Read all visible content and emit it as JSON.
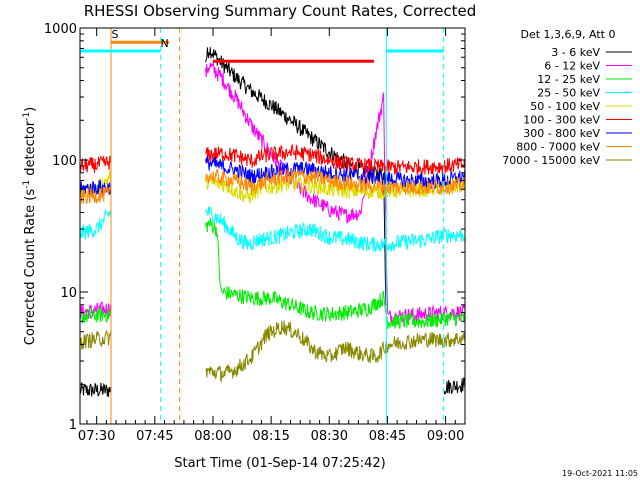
{
  "chart_data": {
    "type": "line",
    "title": "RHESSI Observing Summary Count Rates, Corrected",
    "xlabel": "Start Time (01-Sep-14 07:25:42)",
    "ylabel": "Corrected Count Rate (s",
    "ylabel_sup1": "-1",
    "ylabel_mid": " detector",
    "ylabel_sup2": "-1",
    "ylabel_end": ")",
    "yscale": "log",
    "ylim": [
      1,
      1000
    ],
    "xlim_min": [
      445.7,
      545
    ],
    "x_ticks": [
      {
        "label": "07:30",
        "min": 450
      },
      {
        "label": "07:45",
        "min": 465
      },
      {
        "label": "08:00",
        "min": 480
      },
      {
        "label": "08:15",
        "min": 495
      },
      {
        "label": "08:30",
        "min": 510
      },
      {
        "label": "08:45",
        "min": 525
      },
      {
        "label": "09:00",
        "min": 540
      }
    ],
    "y_ticks": [
      {
        "label": "1",
        "v": 1
      },
      {
        "label": "10",
        "v": 10
      },
      {
        "label": "100",
        "v": 100
      },
      {
        "label": "1000",
        "v": 1000
      }
    ],
    "legend_header": "Det 1,3,6,9, Att 0",
    "series": [
      {
        "name": "3 - 6 keV",
        "color": "#000000",
        "data_gaps": [
          [
            453.7,
            478
          ],
          [
            524.7,
            539.5
          ]
        ],
        "points": [
          [
            446,
            1.8
          ],
          [
            453.5,
            1.8
          ],
          [
            479,
            700
          ],
          [
            482,
            550
          ],
          [
            486,
            420
          ],
          [
            490,
            330
          ],
          [
            495,
            260
          ],
          [
            500,
            200
          ],
          [
            505,
            150
          ],
          [
            510,
            115
          ],
          [
            515,
            92
          ],
          [
            520,
            80
          ],
          [
            524,
            78
          ],
          [
            525,
            1.9
          ],
          [
            539.5,
            1.9
          ],
          [
            545,
            2
          ]
        ]
      },
      {
        "name": "6 - 12 keV",
        "color": "#ff00ff",
        "data_gaps": [
          [
            453.7,
            478
          ]
        ],
        "points": [
          [
            446,
            7
          ],
          [
            453.5,
            7.5
          ],
          [
            479,
            520
          ],
          [
            482,
            430
          ],
          [
            486,
            290
          ],
          [
            490,
            180
          ],
          [
            495,
            110
          ],
          [
            500,
            70
          ],
          [
            505,
            52
          ],
          [
            510,
            42
          ],
          [
            514,
            38
          ],
          [
            518,
            40
          ],
          [
            520,
            80
          ],
          [
            522,
            160
          ],
          [
            524,
            300
          ],
          [
            525,
            6.5
          ],
          [
            535,
            6.8
          ],
          [
            540,
            7
          ],
          [
            545,
            7
          ]
        ]
      },
      {
        "name": "12 - 25 keV",
        "color": "#00ee00",
        "data_gaps": [
          [
            453.7,
            478
          ]
        ],
        "points": [
          [
            446,
            6.5
          ],
          [
            453.5,
            6.8
          ],
          [
            479,
            33
          ],
          [
            481,
            30
          ],
          [
            482,
            10
          ],
          [
            486,
            9.5
          ],
          [
            490,
            9
          ],
          [
            495,
            9
          ],
          [
            500,
            8
          ],
          [
            505,
            7
          ],
          [
            510,
            6.8
          ],
          [
            515,
            7
          ],
          [
            520,
            7.5
          ],
          [
            524,
            9
          ],
          [
            525,
            6
          ],
          [
            535,
            6
          ],
          [
            540,
            6.3
          ],
          [
            545,
            6.3
          ]
        ]
      },
      {
        "name": "25 - 50 keV",
        "color": "#00ffff",
        "data_gaps": [
          [
            453.7,
            478
          ]
        ],
        "points": [
          [
            446,
            28
          ],
          [
            450,
            30
          ],
          [
            453.5,
            40
          ],
          [
            479,
            40
          ],
          [
            482,
            35
          ],
          [
            486,
            26
          ],
          [
            489,
            23
          ],
          [
            492,
            25
          ],
          [
            496,
            26
          ],
          [
            500,
            28
          ],
          [
            505,
            30
          ],
          [
            510,
            26
          ],
          [
            515,
            25
          ],
          [
            520,
            23
          ],
          [
            525,
            23
          ],
          [
            530,
            24
          ],
          [
            535,
            25
          ],
          [
            540,
            27
          ],
          [
            545,
            27
          ]
        ]
      },
      {
        "name": "50 - 100 keV",
        "color": "#dddd00",
        "data_gaps": [
          [
            453.7,
            478
          ]
        ],
        "points": [
          [
            446,
            56
          ],
          [
            450,
            60
          ],
          [
            453.5,
            75
          ],
          [
            479,
            68
          ],
          [
            483,
            65
          ],
          [
            486,
            58
          ],
          [
            489,
            52
          ],
          [
            492,
            60
          ],
          [
            496,
            64
          ],
          [
            500,
            66
          ],
          [
            505,
            64
          ],
          [
            510,
            60
          ],
          [
            515,
            58
          ],
          [
            520,
            58
          ],
          [
            525,
            58
          ],
          [
            530,
            59
          ],
          [
            535,
            60
          ],
          [
            540,
            62
          ],
          [
            545,
            64
          ]
        ]
      },
      {
        "name": "100 - 300 keV",
        "color": "#ff0000",
        "data_gaps": [
          [
            453.7,
            478
          ]
        ],
        "points": [
          [
            446,
            90
          ],
          [
            450,
            92
          ],
          [
            453.5,
            96
          ],
          [
            479,
            110
          ],
          [
            483,
            112
          ],
          [
            487,
            105
          ],
          [
            490,
            98
          ],
          [
            493,
            108
          ],
          [
            497,
            112
          ],
          [
            500,
            115
          ],
          [
            505,
            110
          ],
          [
            510,
            100
          ],
          [
            515,
            92
          ],
          [
            520,
            90
          ],
          [
            525,
            88
          ],
          [
            530,
            88
          ],
          [
            535,
            89
          ],
          [
            540,
            90
          ],
          [
            545,
            92
          ]
        ]
      },
      {
        "name": "300 - 800 keV",
        "color": "#0000ff",
        "data_gaps": [
          [
            453.7,
            478
          ]
        ],
        "points": [
          [
            446,
            60
          ],
          [
            450,
            62
          ],
          [
            453.5,
            62
          ],
          [
            479,
            95
          ],
          [
            483,
            88
          ],
          [
            487,
            82
          ],
          [
            490,
            75
          ],
          [
            494,
            80
          ],
          [
            498,
            84
          ],
          [
            502,
            86
          ],
          [
            506,
            84
          ],
          [
            510,
            80
          ],
          [
            515,
            77
          ],
          [
            520,
            75
          ],
          [
            525,
            72
          ],
          [
            530,
            70
          ],
          [
            535,
            69
          ],
          [
            540,
            70
          ],
          [
            545,
            75
          ]
        ]
      },
      {
        "name": "800 - 7000 keV",
        "color": "#ff8800",
        "data_gaps": [
          [
            453.7,
            478
          ]
        ],
        "points": [
          [
            446,
            52
          ],
          [
            450,
            54
          ],
          [
            453.5,
            55
          ],
          [
            479,
            76
          ],
          [
            483,
            72
          ],
          [
            487,
            68
          ],
          [
            490,
            62
          ],
          [
            494,
            70
          ],
          [
            498,
            74
          ],
          [
            502,
            76
          ],
          [
            506,
            74
          ],
          [
            510,
            70
          ],
          [
            515,
            66
          ],
          [
            520,
            64
          ],
          [
            525,
            62
          ],
          [
            530,
            62
          ],
          [
            535,
            62
          ],
          [
            540,
            63
          ],
          [
            545,
            65
          ]
        ]
      },
      {
        "name": "7000 - 15000 keV",
        "color": "#888800",
        "data_gaps": [
          [
            453.7,
            478
          ]
        ],
        "points": [
          [
            446,
            4.2
          ],
          [
            450,
            4.4
          ],
          [
            453.5,
            4.5
          ],
          [
            479,
            2.5
          ],
          [
            483,
            2.4
          ],
          [
            486,
            2.6
          ],
          [
            490,
            3.2
          ],
          [
            494,
            4.8
          ],
          [
            498,
            5.5
          ],
          [
            502,
            4.8
          ],
          [
            506,
            3.6
          ],
          [
            510,
            3.2
          ],
          [
            514,
            3.8
          ],
          [
            518,
            3.4
          ],
          [
            522,
            3.2
          ],
          [
            525,
            4
          ],
          [
            530,
            4.2
          ],
          [
            535,
            4.4
          ],
          [
            540,
            4.3
          ],
          [
            545,
            4.5
          ]
        ]
      }
    ],
    "annotations": [
      {
        "label": "S",
        "color": "#ff8800",
        "kind": "solid",
        "x_min": 453.7,
        "span_end": 468.7,
        "y": 780
      },
      {
        "label": "N",
        "color": "#00ffff",
        "kind": "dashed",
        "x_min": 466.5,
        "span_end": null,
        "y": 670
      },
      {
        "label": "",
        "color": "#ff8800",
        "kind": "dashed",
        "x_min": 471.4,
        "span_end": null,
        "y": null
      },
      {
        "label": "",
        "color": "#00ffff",
        "kind": "solid",
        "x_min": 524.7,
        "span_end": 539.5,
        "y": 670
      },
      {
        "label": "",
        "color": "#00ffff",
        "kind": "dashed",
        "x_min": 539.5,
        "span_end": null,
        "y": null
      }
    ],
    "cyan_left_bar": {
      "x_start": 445.7,
      "x_end": 466.5,
      "y": 670
    },
    "red_bar": {
      "x_start": 480,
      "x_end": 521.5,
      "y": 560
    },
    "timestamp": "19-Oct-2021 11:05"
  }
}
